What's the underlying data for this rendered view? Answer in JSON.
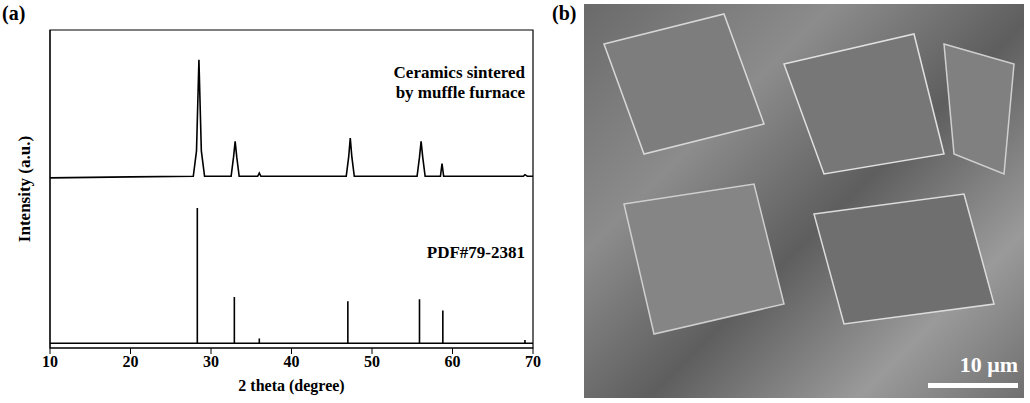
{
  "panels": [
    "(a)",
    "(b)"
  ],
  "chart_data": {
    "type": "line",
    "x_label": "2 theta (degree)",
    "y_label": "Intensity (a.u.)",
    "xlim": [
      10,
      70
    ],
    "xticks": [
      10,
      20,
      30,
      40,
      50,
      60,
      70
    ],
    "ylim": [
      0,
      100
    ],
    "tick_labels": "x",
    "series": [
      {
        "name": "Ceramics sintered by muffle furnace",
        "color": "#000000",
        "x": [
          10,
          20,
          27.8,
          28.2,
          28.5,
          28.8,
          29.2,
          32.5,
          32.8,
          33.0,
          33.2,
          33.5,
          35.8,
          36.0,
          36.2,
          46.8,
          47.1,
          47.3,
          47.5,
          47.8,
          55.6,
          55.9,
          56.1,
          56.3,
          56.6,
          58.5,
          58.7,
          58.9,
          68.8,
          69.0,
          69.3,
          70
        ],
        "values": [
          53.5,
          53.8,
          54,
          62,
          90.6,
          62,
          54,
          54,
          60,
          65,
          60,
          54,
          54,
          55,
          54,
          54,
          60,
          66,
          60,
          54,
          54,
          60,
          65,
          60,
          54,
          54,
          58,
          54,
          54,
          54.5,
          54,
          54
        ]
      },
      {
        "name": "PDF#79-2381",
        "color": "#000000",
        "x": [
          10,
          28.3,
          28.3,
          28.3,
          32.9,
          32.9,
          32.9,
          36.0,
          36.0,
          36.0,
          47.0,
          47.0,
          47.0,
          55.9,
          55.9,
          55.9,
          58.8,
          58.8,
          58.8,
          69.0,
          69.0,
          69.0,
          70
        ],
        "values": [
          1.5,
          1.5,
          44,
          1.5,
          1.5,
          16,
          1.5,
          1.5,
          3,
          1.5,
          1.5,
          14.7,
          1.5,
          1.5,
          15.3,
          1.5,
          1.5,
          11.8,
          1.5,
          1.5,
          2.5,
          1.5,
          1.5
        ]
      }
    ]
  },
  "micrograph": {
    "scale_bar": "10 μm"
  }
}
